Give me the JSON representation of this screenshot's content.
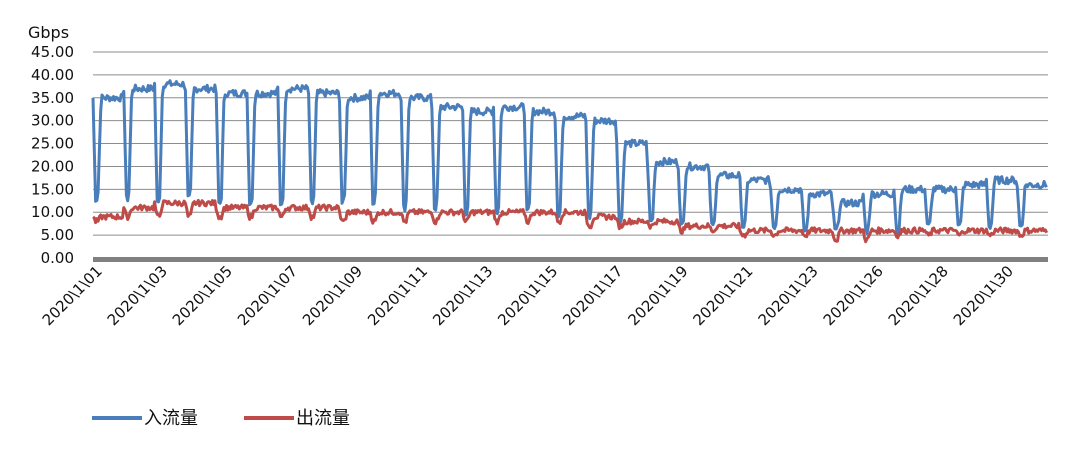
{
  "chart_data": {
    "type": "line",
    "ylabel": "Gbps",
    "ylim": [
      0,
      45
    ],
    "yticks": [
      "0.00",
      "5.00",
      "10.00",
      "15.00",
      "20.00",
      "25.00",
      "30.00",
      "35.00",
      "40.00",
      "45.00"
    ],
    "grid": "horizontal",
    "legend_position": "bottom-left",
    "xticks": [
      "2020\\1\\01",
      "2020\\1\\03",
      "2020\\1\\05",
      "2020\\1\\07",
      "2020\\1\\09",
      "2020\\1\\11",
      "2020\\1\\13",
      "2020\\1\\15",
      "2020\\1\\17",
      "2020\\1\\19",
      "2020\\1\\21",
      "2020\\1\\23",
      "2020\\1\\26",
      "2020\\1\\28",
      "2020\\1\\30"
    ],
    "days": 31,
    "series": [
      {
        "name": "入流量",
        "color": "#4a7ebb",
        "daily_peak": [
          35,
          37,
          38,
          37,
          36,
          36,
          37,
          36,
          35,
          36,
          35,
          33,
          32,
          33,
          32,
          31,
          30,
          25,
          21,
          20,
          18,
          17,
          15,
          14,
          12,
          14,
          15,
          15,
          16,
          17,
          16
        ],
        "daily_trough": [
          13,
          13,
          12,
          13,
          12,
          12,
          12,
          12,
          12,
          12,
          11,
          11,
          10,
          10,
          10,
          9,
          9,
          8,
          8,
          7,
          7,
          7,
          7,
          6,
          6,
          6,
          6,
          7,
          7,
          7,
          7
        ]
      },
      {
        "name": "出流量",
        "color": "#be4b48",
        "daily_peak": [
          9,
          11,
          12,
          12,
          11,
          11,
          11,
          11,
          10,
          10,
          10,
          10,
          10,
          10,
          10,
          10,
          9,
          8,
          8,
          7,
          7,
          6,
          6,
          6,
          6,
          6,
          6,
          6,
          6,
          6,
          6
        ],
        "daily_trough": [
          8,
          9,
          9,
          9,
          9,
          9,
          9,
          9,
          8,
          8,
          8,
          8,
          8,
          8,
          8,
          8,
          7,
          7,
          7,
          6,
          6,
          5,
          5,
          5,
          4,
          4,
          5,
          5,
          5,
          5,
          5
        ]
      }
    ]
  }
}
